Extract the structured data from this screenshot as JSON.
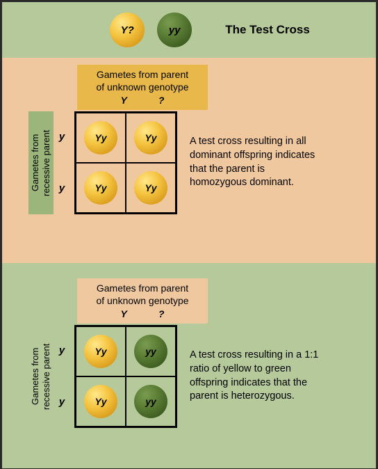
{
  "title": "The Test Cross",
  "legend": {
    "unknown": "Y?",
    "recessive": "yy"
  },
  "colors": {
    "frame_bg": "#b5c99a",
    "panel_orange": "#f0c8a0",
    "label_yellow": "#e8b84a",
    "label_green": "#9bb57a",
    "pea_yellow_main": "#f5c542",
    "pea_green_main": "#5a7d35",
    "border": "#000000"
  },
  "top_label_line1": "Gametes from parent",
  "top_label_line2": "of unknown genotype",
  "top_gametes": {
    "left": "Y",
    "right": "?"
  },
  "left_label": "Gametes from recessive parent",
  "left_gametes": {
    "top": "y",
    "bottom": "y"
  },
  "panel1": {
    "cells": [
      {
        "genotype": "Yy",
        "color": "yellow"
      },
      {
        "genotype": "Yy",
        "color": "yellow"
      },
      {
        "genotype": "Yy",
        "color": "yellow"
      },
      {
        "genotype": "Yy",
        "color": "yellow"
      }
    ],
    "description": "A test cross resulting in all dominant offspring indicates that the parent is homozygous dominant."
  },
  "panel2": {
    "cells": [
      {
        "genotype": "Yy",
        "color": "yellow"
      },
      {
        "genotype": "yy",
        "color": "green"
      },
      {
        "genotype": "Yy",
        "color": "yellow"
      },
      {
        "genotype": "yy",
        "color": "green"
      }
    ],
    "description": "A test cross resulting in a 1:1 ratio of yellow to green offspring indicates that the parent is heterozygous."
  }
}
